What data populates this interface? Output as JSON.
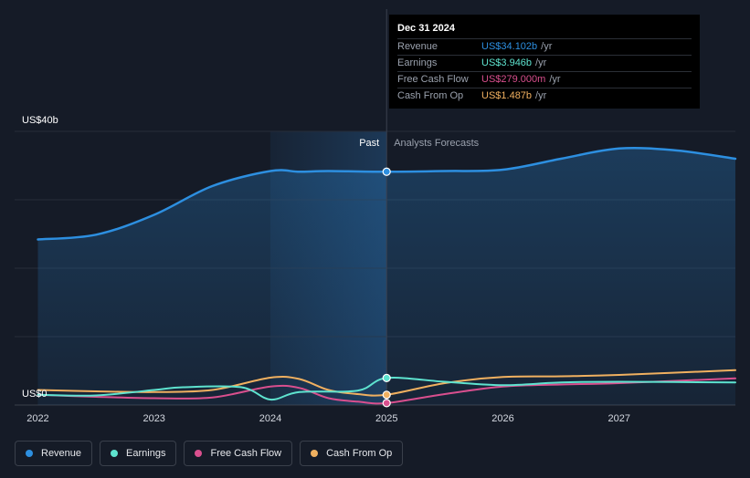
{
  "chart_data": {
    "type": "line",
    "currency_unit": "US$",
    "y_axis_labels": [
      "US$40b",
      "US$0"
    ],
    "ylim": [
      0,
      40
    ],
    "xlim": [
      2021.8,
      2028.0
    ],
    "x_ticks": [
      2022,
      2023,
      2024,
      2025,
      2026,
      2027
    ],
    "x_tick_labels": [
      "2022",
      "2023",
      "2024",
      "2025",
      "2026",
      "2027"
    ],
    "gridlines": [
      0,
      10,
      20,
      30,
      40
    ],
    "past_start": 2024.0,
    "divider_x": 2025.0,
    "past_label": "Past",
    "forecast_label": "Analysts Forecasts",
    "series": [
      {
        "name": "Revenue",
        "color": "#2d8fe0",
        "points": [
          [
            2022.0,
            24.2
          ],
          [
            2022.5,
            24.9
          ],
          [
            2023.0,
            27.8
          ],
          [
            2023.5,
            32.0
          ],
          [
            2024.0,
            34.2
          ],
          [
            2024.25,
            34.1
          ],
          [
            2024.5,
            34.2
          ],
          [
            2025.0,
            34.1
          ],
          [
            2025.5,
            34.2
          ],
          [
            2026.0,
            34.4
          ],
          [
            2026.5,
            36.0
          ],
          [
            2027.0,
            37.5
          ],
          [
            2027.5,
            37.2
          ],
          [
            2028.0,
            36.0
          ]
        ]
      },
      {
        "name": "Earnings",
        "color": "#5ee3cf",
        "points": [
          [
            2022.0,
            1.5
          ],
          [
            2022.5,
            1.4
          ],
          [
            2023.0,
            2.2
          ],
          [
            2023.25,
            2.6
          ],
          [
            2023.75,
            2.6
          ],
          [
            2024.0,
            0.8
          ],
          [
            2024.25,
            1.9
          ],
          [
            2024.75,
            2.1
          ],
          [
            2025.0,
            3.95
          ],
          [
            2025.5,
            3.4
          ],
          [
            2026.0,
            2.9
          ],
          [
            2026.5,
            3.3
          ],
          [
            2027.0,
            3.4
          ],
          [
            2028.0,
            3.3
          ]
        ]
      },
      {
        "name": "Free Cash Flow",
        "color": "#d94f8e",
        "points": [
          [
            2022.0,
            1.5
          ],
          [
            2022.5,
            1.2
          ],
          [
            2023.0,
            1.0
          ],
          [
            2023.5,
            1.1
          ],
          [
            2024.0,
            2.7
          ],
          [
            2024.25,
            2.5
          ],
          [
            2024.5,
            1.0
          ],
          [
            2024.75,
            0.5
          ],
          [
            2025.0,
            0.28
          ],
          [
            2025.5,
            1.6
          ],
          [
            2026.0,
            2.7
          ],
          [
            2026.5,
            3.0
          ],
          [
            2027.0,
            3.2
          ],
          [
            2028.0,
            3.9
          ]
        ]
      },
      {
        "name": "Cash From Op",
        "color": "#f0b060",
        "points": [
          [
            2022.0,
            2.2
          ],
          [
            2022.5,
            2.0
          ],
          [
            2023.0,
            1.9
          ],
          [
            2023.5,
            2.2
          ],
          [
            2024.0,
            4.0
          ],
          [
            2024.25,
            3.8
          ],
          [
            2024.5,
            2.2
          ],
          [
            2024.75,
            1.6
          ],
          [
            2025.0,
            1.49
          ],
          [
            2025.5,
            3.2
          ],
          [
            2026.0,
            4.1
          ],
          [
            2026.5,
            4.2
          ],
          [
            2027.0,
            4.4
          ],
          [
            2028.0,
            5.1
          ]
        ]
      }
    ]
  },
  "tooltip": {
    "date": "Dec 31 2024",
    "rows": [
      {
        "name": "Revenue",
        "value": "US$34.102b",
        "unit": "/yr",
        "color": "#2d8fe0"
      },
      {
        "name": "Earnings",
        "value": "US$3.946b",
        "unit": "/yr",
        "color": "#5ee3cf"
      },
      {
        "name": "Free Cash Flow",
        "value": "US$279.000m",
        "unit": "/yr",
        "color": "#d94f8e"
      },
      {
        "name": "Cash From Op",
        "value": "US$1.487b",
        "unit": "/yr",
        "color": "#f0b060"
      }
    ]
  },
  "legend": [
    {
      "label": "Revenue",
      "color": "#2d8fe0"
    },
    {
      "label": "Earnings",
      "color": "#5ee3cf"
    },
    {
      "label": "Free Cash Flow",
      "color": "#d94f8e"
    },
    {
      "label": "Cash From Op",
      "color": "#f0b060"
    }
  ]
}
